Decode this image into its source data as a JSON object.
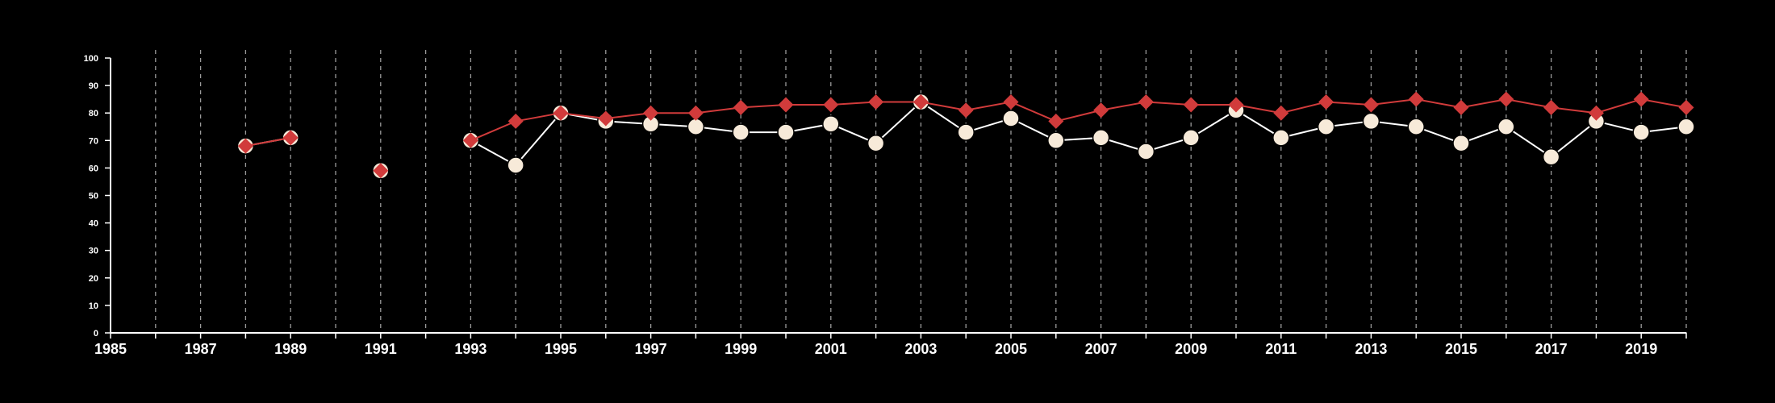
{
  "chart_data": {
    "type": "line",
    "title": "",
    "xlabel": "",
    "ylabel": "",
    "xlim": [
      1985,
      2020
    ],
    "ylim": [
      0,
      100
    ],
    "x_ticks": [
      1985,
      1986,
      1987,
      1988,
      1989,
      1990,
      1991,
      1992,
      1993,
      1994,
      1995,
      1996,
      1997,
      1998,
      1999,
      2000,
      2001,
      2002,
      2003,
      2004,
      2005,
      2006,
      2007,
      2008,
      2009,
      2010,
      2011,
      2012,
      2013,
      2014,
      2015,
      2016,
      2017,
      2018,
      2019,
      2020
    ],
    "x_tick_labels": [
      "1985",
      "1987",
      "1989",
      "1991",
      "1993",
      "1995",
      "1997",
      "1999",
      "2001",
      "2003",
      "2005",
      "2007",
      "2009",
      "2011",
      "2013",
      "2015",
      "2017",
      "2019"
    ],
    "y_ticks": [
      0,
      10,
      20,
      30,
      40,
      50,
      60,
      70,
      80,
      90,
      100
    ],
    "y_tick_labels": [
      "0",
      "10",
      "20",
      "30",
      "40",
      "50",
      "60",
      "70",
      "80",
      "90",
      "100"
    ],
    "grid": "vertical dashed lines at each year",
    "legend": "none",
    "series": [
      {
        "marker": "circle",
        "color": "#ffffff",
        "marker_fill": "#f7ead9",
        "points": [
          [
            1988,
            68
          ],
          [
            1989,
            71
          ],
          [
            1991,
            59
          ],
          [
            1993,
            70
          ],
          [
            1994,
            61
          ],
          [
            1995,
            80
          ],
          [
            1996,
            77
          ],
          [
            1997,
            76
          ],
          [
            1998,
            75
          ],
          [
            1999,
            73
          ],
          [
            2000,
            73
          ],
          [
            2001,
            76
          ],
          [
            2002,
            69
          ],
          [
            2003,
            84
          ],
          [
            2004,
            73
          ],
          [
            2005,
            78
          ],
          [
            2006,
            70
          ],
          [
            2007,
            71
          ],
          [
            2008,
            66
          ],
          [
            2009,
            71
          ],
          [
            2010,
            81
          ],
          [
            2011,
            71
          ],
          [
            2012,
            75
          ],
          [
            2013,
            77
          ],
          [
            2014,
            75
          ],
          [
            2015,
            69
          ],
          [
            2016,
            75
          ],
          [
            2017,
            64
          ],
          [
            2018,
            77
          ],
          [
            2019,
            73
          ],
          [
            2020,
            75
          ]
        ]
      },
      {
        "marker": "diamond",
        "color": "#d13b3b",
        "points": [
          [
            1988,
            68
          ],
          [
            1989,
            71
          ],
          [
            1991,
            59
          ],
          [
            1993,
            70
          ],
          [
            1994,
            77
          ],
          [
            1995,
            80
          ],
          [
            1996,
            78
          ],
          [
            1997,
            80
          ],
          [
            1998,
            80
          ],
          [
            1999,
            82
          ],
          [
            2000,
            83
          ],
          [
            2001,
            83
          ],
          [
            2002,
            84
          ],
          [
            2003,
            84
          ],
          [
            2004,
            81
          ],
          [
            2005,
            84
          ],
          [
            2006,
            77
          ],
          [
            2007,
            81
          ],
          [
            2008,
            84
          ],
          [
            2009,
            83
          ],
          [
            2010,
            83
          ],
          [
            2011,
            80
          ],
          [
            2012,
            84
          ],
          [
            2013,
            83
          ],
          [
            2014,
            85
          ],
          [
            2015,
            82
          ],
          [
            2016,
            85
          ],
          [
            2017,
            82
          ],
          [
            2018,
            80
          ],
          [
            2019,
            85
          ],
          [
            2020,
            82
          ]
        ]
      }
    ]
  }
}
